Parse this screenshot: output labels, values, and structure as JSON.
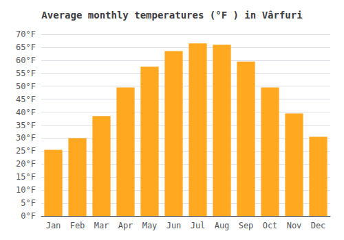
{
  "chart_data": {
    "type": "bar",
    "title": "Average monthly temperatures (°F ) in Vârfuri",
    "categories": [
      "Jan",
      "Feb",
      "Mar",
      "Apr",
      "May",
      "Jun",
      "Jul",
      "Aug",
      "Sep",
      "Oct",
      "Nov",
      "Dec"
    ],
    "values": [
      25.5,
      30.0,
      38.5,
      49.5,
      57.5,
      63.5,
      66.5,
      66.0,
      59.5,
      49.5,
      39.5,
      30.5
    ],
    "color": "#FFA820",
    "ylim": [
      0,
      70
    ],
    "yticks": [
      {
        "value": 0,
        "label": "0°F"
      },
      {
        "value": 5,
        "label": "5°F"
      },
      {
        "value": 10,
        "label": "10°F"
      },
      {
        "value": 15,
        "label": "15°F"
      },
      {
        "value": 20,
        "label": "20°F"
      },
      {
        "value": 25,
        "label": "25°F"
      },
      {
        "value": 30,
        "label": "30°F"
      },
      {
        "value": 35,
        "label": "35°F"
      },
      {
        "value": 40,
        "label": "40°F"
      },
      {
        "value": 45,
        "label": "45°F"
      },
      {
        "value": 50,
        "label": "50°F"
      },
      {
        "value": 55,
        "label": "55°F"
      },
      {
        "value": 60,
        "label": "60°F"
      },
      {
        "value": 65,
        "label": "65°F"
      },
      {
        "value": 70,
        "label": "70°F"
      }
    ],
    "grid": true
  }
}
